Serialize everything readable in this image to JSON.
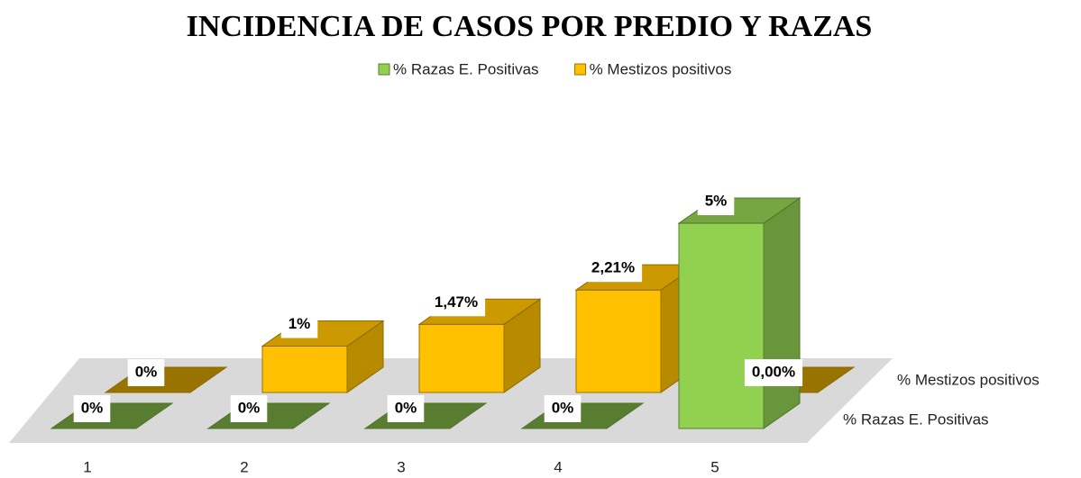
{
  "chart_data": {
    "type": "bar3d",
    "title": "INCIDENCIA DE CASOS POR PREDIO Y RAZAS",
    "categories": [
      "1",
      "2",
      "3",
      "4",
      "5"
    ],
    "series": [
      {
        "name": "% Razas E. Positivas",
        "color": "#92d050",
        "values": [
          0,
          0,
          0,
          0,
          5
        ],
        "value_labels": [
          "0%",
          "0%",
          "0%",
          "0%",
          "5%"
        ]
      },
      {
        "name": "% Mestizos positivos",
        "color": "#ffc000",
        "values": [
          0,
          1,
          1.47,
          2.21,
          0
        ],
        "value_labels": [
          "0%",
          "1%",
          "1,47%",
          "2,21%",
          "0,00%"
        ]
      }
    ],
    "legend": "top"
  }
}
